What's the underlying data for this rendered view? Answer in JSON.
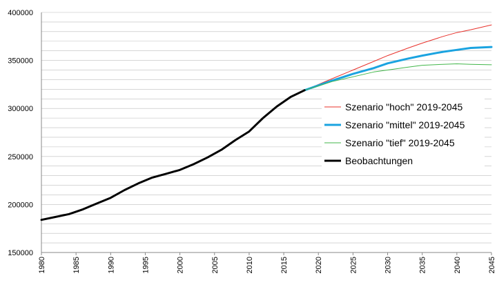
{
  "chart_data": {
    "type": "line",
    "title": "",
    "xlabel": "",
    "ylabel": "",
    "xlim": [
      1980,
      2045
    ],
    "ylim": [
      150000,
      400000
    ],
    "grid": true,
    "legend_position": "right",
    "y_ticks": [
      {
        "value": 150000,
        "label": "150000"
      },
      {
        "value": 200000,
        "label": "200000"
      },
      {
        "value": 250000,
        "label": "250000"
      },
      {
        "value": 300000,
        "label": "300000"
      },
      {
        "value": 350000,
        "label": "350000"
      },
      {
        "value": 400000,
        "label": "400000"
      }
    ],
    "y_minor_step": 10000,
    "x_ticks": [
      {
        "value": 1980,
        "label": "1980"
      },
      {
        "value": 1985,
        "label": "1985"
      },
      {
        "value": 1990,
        "label": "1990"
      },
      {
        "value": 1995,
        "label": "1995"
      },
      {
        "value": 2000,
        "label": "2000"
      },
      {
        "value": 2005,
        "label": "2005"
      },
      {
        "value": 2010,
        "label": "2010"
      },
      {
        "value": 2015,
        "label": "2015"
      },
      {
        "value": 2020,
        "label": "2020"
      },
      {
        "value": 2025,
        "label": "2025"
      },
      {
        "value": 2030,
        "label": "2030"
      },
      {
        "value": 2035,
        "label": "2035"
      },
      {
        "value": 2040,
        "label": "2040"
      },
      {
        "value": 2045,
        "label": "2045"
      }
    ],
    "series": [
      {
        "name": "Szenario \"hoch\" 2019-2045",
        "color": "#e8302a",
        "width": 1,
        "points": [
          [
            2018,
            319000
          ],
          [
            2020,
            325000
          ],
          [
            2022,
            331000
          ],
          [
            2025,
            340000
          ],
          [
            2028,
            349000
          ],
          [
            2030,
            355000
          ],
          [
            2033,
            363000
          ],
          [
            2035,
            368000
          ],
          [
            2038,
            375000
          ],
          [
            2040,
            379000
          ],
          [
            2042,
            382000
          ],
          [
            2045,
            387000
          ]
        ]
      },
      {
        "name": "Szenario \"mittel\" 2019-2045",
        "color": "#1aa3e0",
        "width": 3,
        "points": [
          [
            2018,
            319000
          ],
          [
            2020,
            324000
          ],
          [
            2022,
            329000
          ],
          [
            2025,
            336000
          ],
          [
            2028,
            342000
          ],
          [
            2030,
            347000
          ],
          [
            2033,
            352000
          ],
          [
            2035,
            355000
          ],
          [
            2038,
            359000
          ],
          [
            2040,
            361000
          ],
          [
            2042,
            363000
          ],
          [
            2045,
            364000
          ]
        ]
      },
      {
        "name": "Szenario \"tief\" 2019-2045",
        "color": "#41b649",
        "width": 1,
        "points": [
          [
            2018,
            319000
          ],
          [
            2020,
            323500
          ],
          [
            2022,
            328000
          ],
          [
            2025,
            333000
          ],
          [
            2028,
            338000
          ],
          [
            2030,
            340000
          ],
          [
            2033,
            343000
          ],
          [
            2035,
            345000
          ],
          [
            2038,
            346000
          ],
          [
            2040,
            346500
          ],
          [
            2042,
            346000
          ],
          [
            2045,
            345500
          ]
        ]
      },
      {
        "name": "Beobachtungen",
        "color": "#000000",
        "width": 3,
        "points": [
          [
            1980,
            184000
          ],
          [
            1982,
            187000
          ],
          [
            1984,
            190000
          ],
          [
            1986,
            195000
          ],
          [
            1988,
            201000
          ],
          [
            1990,
            207000
          ],
          [
            1992,
            215000
          ],
          [
            1994,
            222000
          ],
          [
            1996,
            228000
          ],
          [
            1998,
            232000
          ],
          [
            2000,
            236000
          ],
          [
            2002,
            242000
          ],
          [
            2004,
            249000
          ],
          [
            2006,
            257000
          ],
          [
            2008,
            267000
          ],
          [
            2010,
            276000
          ],
          [
            2012,
            290000
          ],
          [
            2014,
            302000
          ],
          [
            2016,
            312000
          ],
          [
            2018,
            319000
          ]
        ]
      }
    ]
  }
}
